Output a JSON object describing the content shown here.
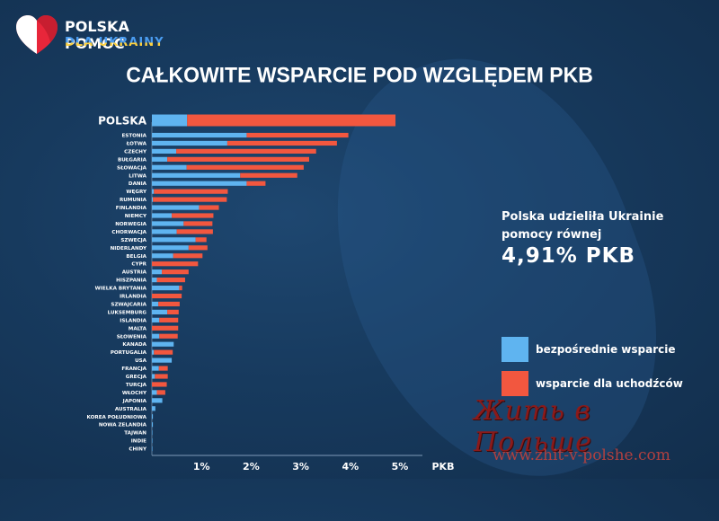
{
  "logo": {
    "title": "POLSKA POMOC",
    "subtitle": "DLA UKRAINY"
  },
  "title": "CAŁKOWITE WSPARCIE  POD WZGLĘDEM PKB",
  "info": {
    "line1": "Polska udzieliła Ukrainie",
    "line2": "pomocy równej",
    "value": "4,91% PKB"
  },
  "legend": [
    {
      "label": "bezpośrednie wsparcie",
      "color": "#5fb4f0"
    },
    {
      "label": "wsparcie dla uchodźców",
      "color": "#f2573f"
    }
  ],
  "watermark": {
    "title": "Жить в Польше",
    "url": "www.zhit-v-polshe.com"
  },
  "chart_data": {
    "type": "bar",
    "orientation": "horizontal",
    "stacked": true,
    "x_tick_labels": [
      "1%",
      "2%",
      "3%",
      "4%",
      "5%",
      "PKB"
    ],
    "x_ticks": [
      1,
      2,
      3,
      4,
      5
    ],
    "xlim": [
      0,
      5.8
    ],
    "categories": [
      "POLSKA",
      "ESTONIA",
      "ŁOTWA",
      "CZECHY",
      "BUŁGARIA",
      "SŁOWACJA",
      "LITWA",
      "DANIA",
      "WĘGRY",
      "RUMUNIA",
      "FINLANDIA",
      "NIEMCY",
      "NORWEGIA",
      "CHORWACJA",
      "SZWECJA",
      "NIDERLANDY",
      "BELGIA",
      "CYPR",
      "AUSTRIA",
      "HISZPANIA",
      "WIELKA BRYTANIA",
      "IRLANDIA",
      "SZWAJCARIA",
      "LUKSEMBURG",
      "ISLANDIA",
      "MALTA",
      "SŁOWENIA",
      "KANADA",
      "PORTUGALIA",
      "USA",
      "FRANCJA",
      "GRECJA",
      "TURCJA",
      "WŁOCHY",
      "JAPONIA",
      "AUSTRALIA",
      "KOREA POŁUDNIOWA",
      "NOWA ZELANDIA",
      "TAJWAN",
      "INDIE",
      "CHINY"
    ],
    "series": [
      {
        "name": "bezpośrednie wsparcie",
        "color": "#5fb4f0",
        "values": [
          0.71,
          1.91,
          1.52,
          0.49,
          0.31,
          0.7,
          1.78,
          1.91,
          0.04,
          0.02,
          0.95,
          0.4,
          0.64,
          0.5,
          0.88,
          0.74,
          0.43,
          0.0,
          0.2,
          0.1,
          0.55,
          0.0,
          0.13,
          0.31,
          0.15,
          0.0,
          0.15,
          0.44,
          0.04,
          0.4,
          0.14,
          0.06,
          0.0,
          0.1,
          0.21,
          0.07,
          0.02,
          0.02,
          0.01,
          0.01,
          0.01
        ]
      },
      {
        "name": "wsparcie dla uchodźców",
        "color": "#f2573f",
        "values": [
          4.2,
          2.05,
          2.21,
          2.82,
          2.86,
          2.36,
          1.15,
          0.38,
          1.49,
          1.49,
          0.4,
          0.84,
          0.58,
          0.73,
          0.22,
          0.38,
          0.59,
          0.93,
          0.54,
          0.57,
          0.06,
          0.6,
          0.43,
          0.23,
          0.38,
          0.53,
          0.37,
          0.0,
          0.38,
          0.0,
          0.18,
          0.26,
          0.3,
          0.17,
          0.0,
          0.0,
          0.0,
          0.0,
          0.0,
          0.0,
          0.0
        ]
      }
    ]
  }
}
